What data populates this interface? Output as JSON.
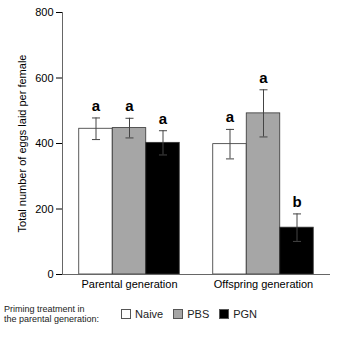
{
  "chart_data": {
    "type": "bar",
    "categories": [
      "Parental generation",
      "Offspring generation"
    ],
    "series": [
      {
        "name": "Naive",
        "color": "#ffffff",
        "values": [
          445,
          398
        ],
        "errors": [
          33,
          45
        ],
        "letters": [
          "a",
          "a"
        ]
      },
      {
        "name": "PBS",
        "color": "#a6a6a6",
        "values": [
          447,
          492
        ],
        "errors": [
          30,
          72
        ],
        "letters": [
          "a",
          "a"
        ]
      },
      {
        "name": "PGN",
        "color": "#000000",
        "values": [
          402,
          143
        ],
        "errors": [
          37,
          42
        ],
        "letters": [
          "a",
          "b"
        ]
      }
    ],
    "ylim": [
      0,
      800
    ],
    "yticks": [
      0,
      200,
      400,
      600,
      800
    ],
    "ylabel": "Total number of eggs laid per female",
    "legend": "bottom",
    "legend_title": [
      "Priming treatment in",
      "the parental generation:"
    ]
  }
}
